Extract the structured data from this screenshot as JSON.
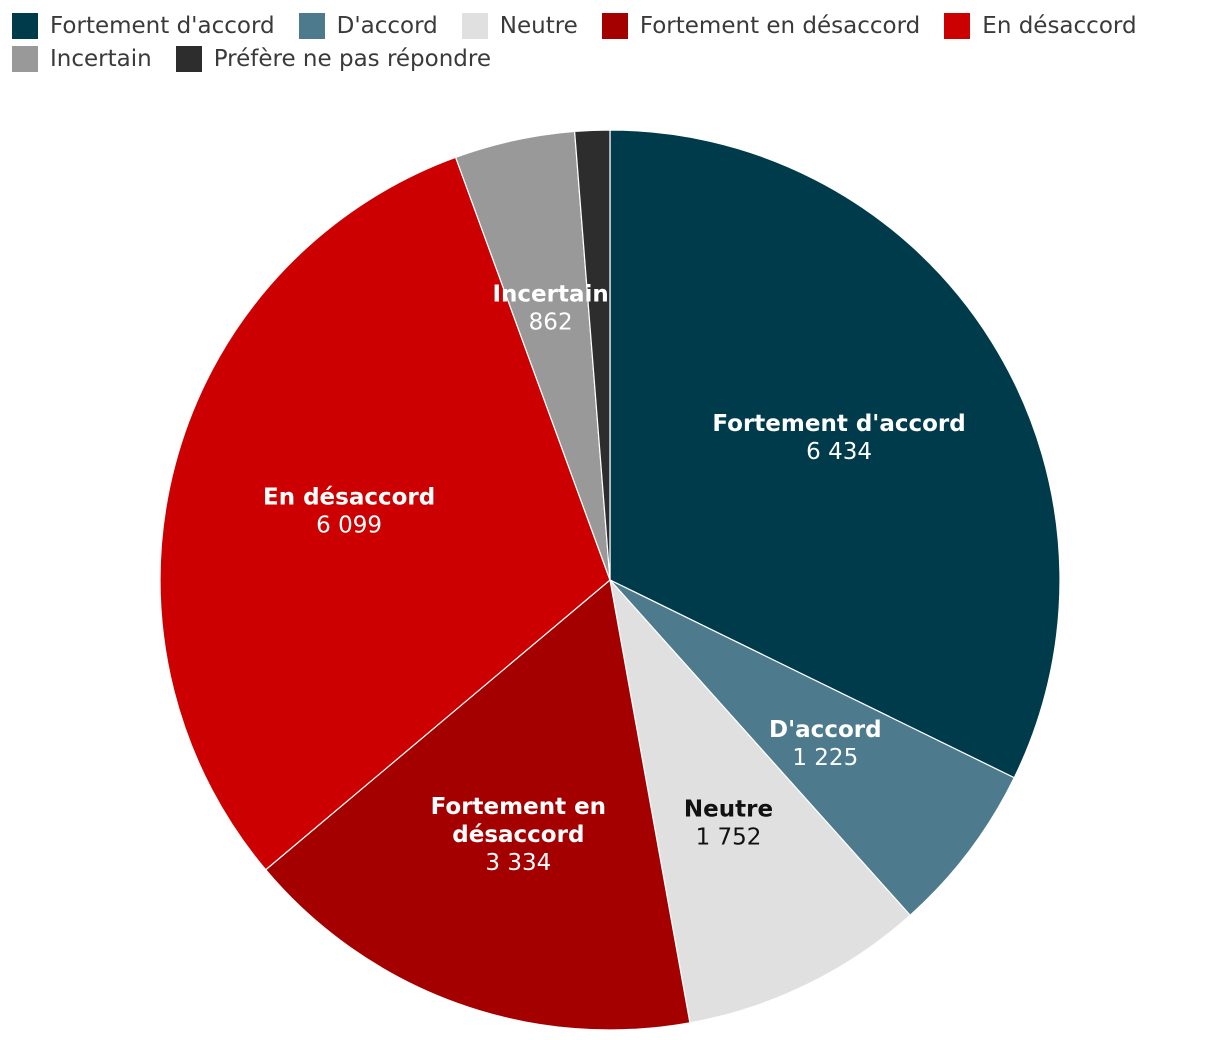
{
  "chart_data": {
    "type": "pie",
    "categories": [
      "Fortement d'accord",
      "D'accord",
      "Neutre",
      "Fortement en désaccord",
      "En désaccord",
      "Incertain",
      "Préfère ne pas répondre"
    ],
    "values": [
      6434,
      1225,
      1752,
      3334,
      6099,
      862,
      250
    ],
    "display_values": [
      "6 434",
      "1 225",
      "1 752",
      "3 334",
      "6 099",
      "862",
      ""
    ],
    "colors": [
      "#003b4c",
      "#4d7a8c",
      "#e0e0e0",
      "#a50000",
      "#cc0000",
      "#999999",
      "#2d2d2d"
    ],
    "label_text_colors": [
      "#ffffff",
      "#ffffff",
      "#111111",
      "#ffffff",
      "#ffffff",
      "#ffffff",
      "#ffffff"
    ],
    "label_lines": [
      [
        "Fortement d'accord"
      ],
      [
        "D'accord"
      ],
      [
        "Neutre"
      ],
      [
        "Fortement en",
        "désaccord"
      ],
      [
        "En désaccord"
      ],
      [
        "Incertain"
      ],
      []
    ],
    "legend_position": "top-left"
  },
  "legend": {
    "items": [
      {
        "label": "Fortement d'accord",
        "color": "#003b4c"
      },
      {
        "label": "D'accord",
        "color": "#4d7a8c"
      },
      {
        "label": "Neutre",
        "color": "#e0e0e0"
      },
      {
        "label": "Fortement en désaccord",
        "color": "#a50000"
      },
      {
        "label": "En désaccord",
        "color": "#cc0000"
      },
      {
        "label": "Incertain",
        "color": "#999999"
      },
      {
        "label": "Préfère ne pas répondre",
        "color": "#2d2d2d"
      }
    ]
  }
}
